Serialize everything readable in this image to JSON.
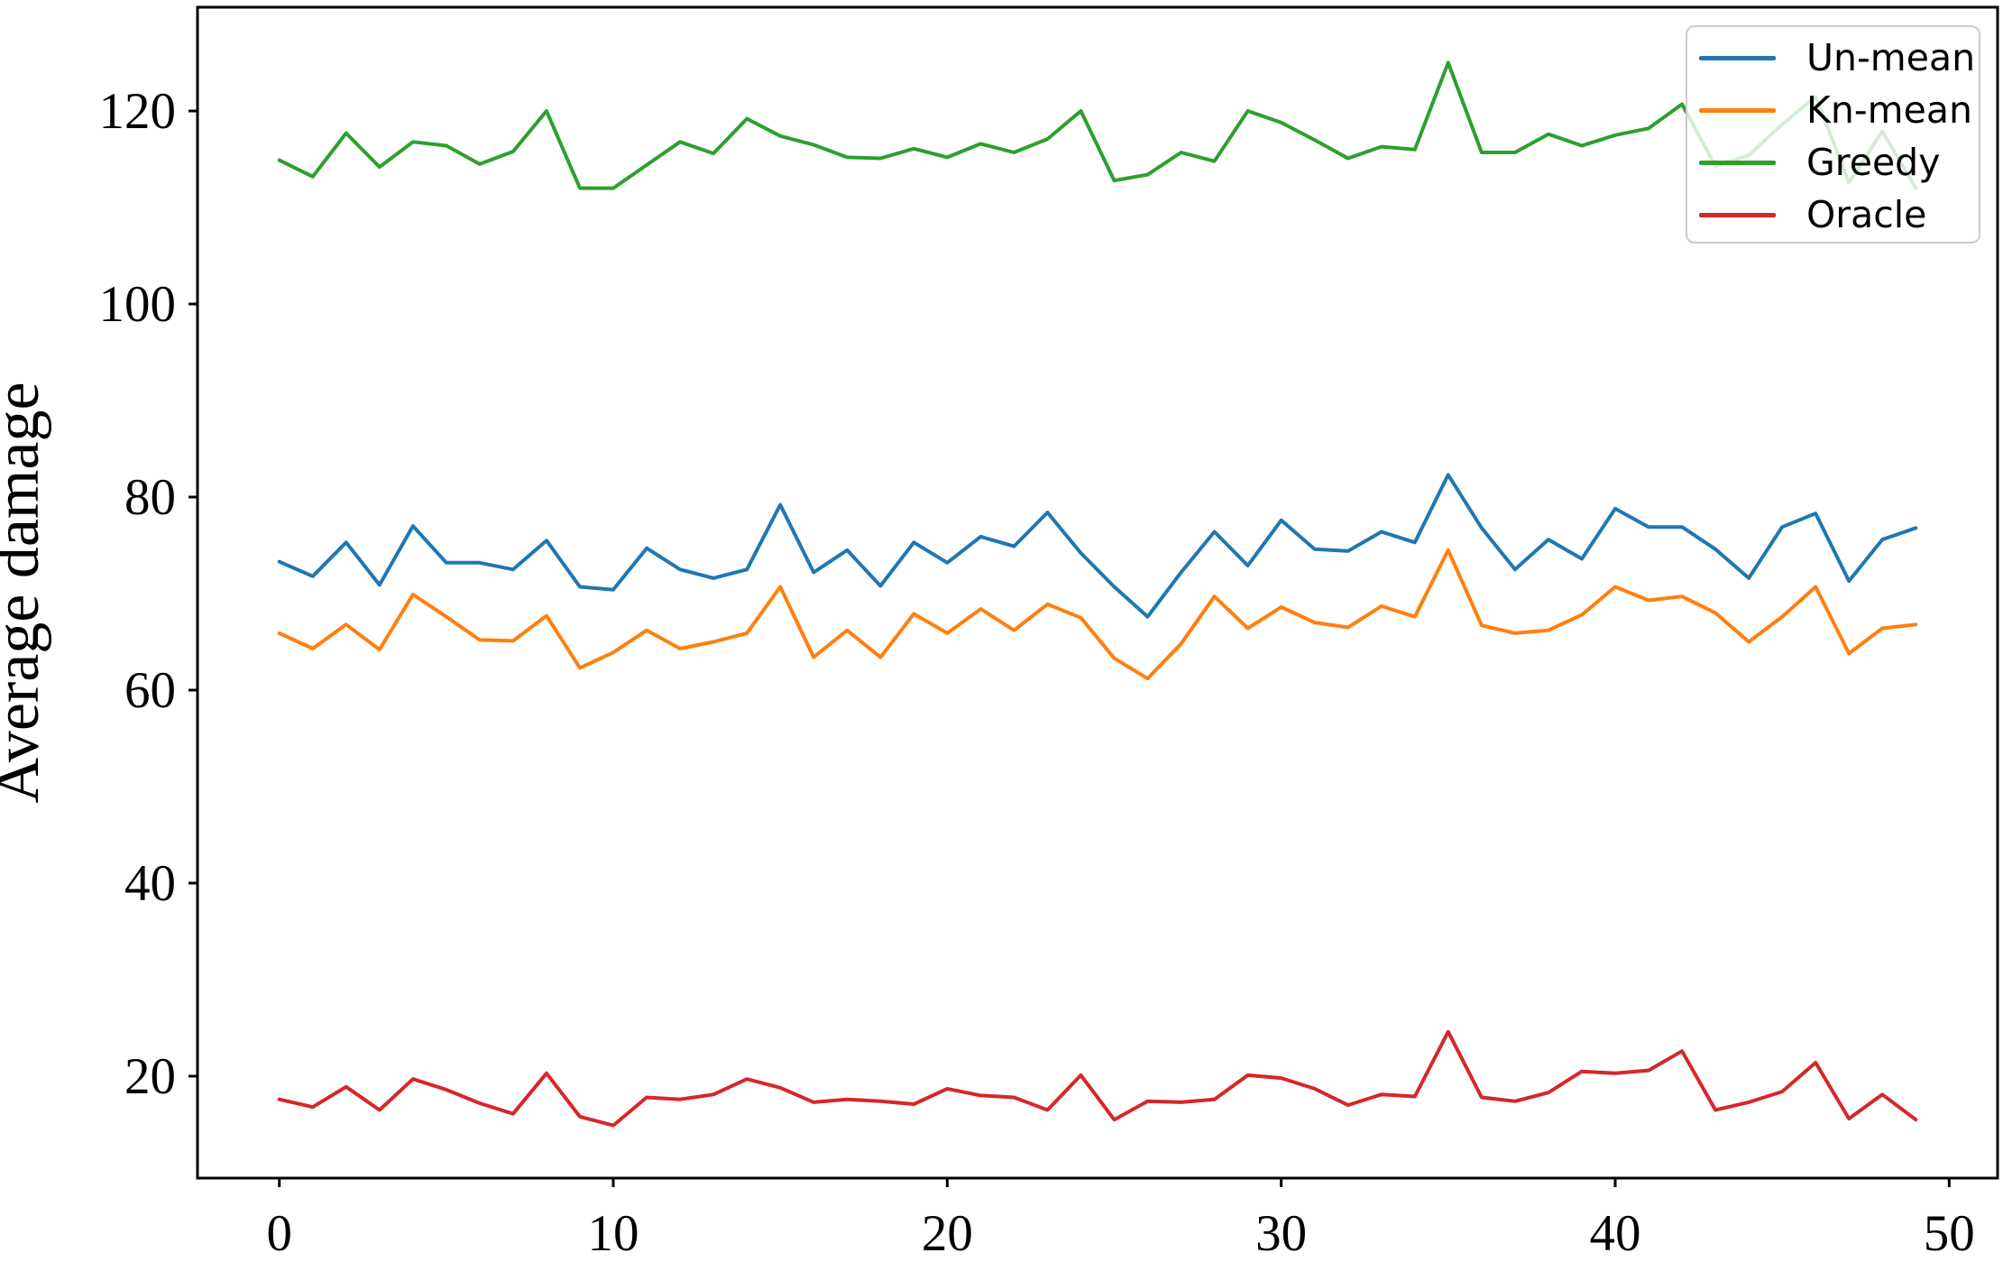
{
  "figure": {
    "background": "#ffffff"
  },
  "chart_data": {
    "type": "line",
    "title": "",
    "xlabel": "",
    "ylabel": "Average damage",
    "x": [
      0,
      1,
      2,
      3,
      4,
      5,
      6,
      7,
      8,
      9,
      10,
      11,
      12,
      13,
      14,
      15,
      16,
      17,
      18,
      19,
      20,
      21,
      22,
      23,
      24,
      25,
      26,
      27,
      28,
      29,
      30,
      31,
      32,
      33,
      34,
      35,
      36,
      37,
      38,
      39,
      40,
      41,
      42,
      43,
      44,
      45,
      46,
      47,
      48,
      49
    ],
    "series": [
      {
        "name": "Un-mean",
        "color": "#1f77b4",
        "values": [
          73.3,
          71.8,
          75.3,
          70.9,
          77.0,
          73.2,
          73.2,
          72.5,
          75.5,
          70.7,
          70.4,
          74.7,
          72.5,
          71.6,
          72.5,
          79.2,
          72.2,
          74.5,
          70.8,
          75.3,
          73.2,
          75.9,
          74.9,
          78.4,
          74.2,
          70.7,
          67.6,
          72.2,
          76.4,
          72.9,
          77.6,
          74.6,
          74.4,
          76.4,
          75.3,
          82.3,
          76.8,
          72.5,
          75.6,
          73.6,
          78.8,
          76.9,
          76.9,
          74.6,
          71.6,
          76.9,
          78.3,
          71.3,
          75.6,
          76.8
        ]
      },
      {
        "name": "Kn-mean",
        "color": "#ff7f0e",
        "values": [
          65.9,
          64.3,
          66.8,
          64.2,
          69.9,
          67.6,
          65.2,
          65.1,
          67.7,
          62.3,
          63.9,
          66.2,
          64.3,
          65.0,
          65.9,
          70.7,
          63.4,
          66.2,
          63.4,
          67.9,
          65.9,
          68.4,
          66.2,
          68.9,
          67.5,
          63.3,
          61.2,
          64.8,
          69.7,
          66.4,
          68.6,
          67.0,
          66.5,
          68.7,
          67.6,
          74.5,
          66.7,
          65.9,
          66.2,
          67.8,
          70.7,
          69.3,
          69.7,
          68.0,
          65.0,
          67.6,
          70.7,
          63.8,
          66.4,
          66.8
        ]
      },
      {
        "name": "Greedy",
        "color": "#2ca02c",
        "values": [
          114.9,
          113.2,
          117.7,
          114.2,
          116.8,
          116.4,
          114.5,
          115.8,
          120.0,
          112.0,
          112.0,
          114.4,
          116.8,
          115.6,
          119.2,
          117.4,
          116.5,
          115.2,
          115.1,
          116.1,
          115.2,
          116.6,
          115.7,
          117.1,
          120.0,
          112.8,
          113.4,
          115.7,
          114.8,
          120.0,
          118.8,
          117.0,
          115.1,
          116.3,
          116.0,
          125.0,
          115.7,
          115.7,
          117.6,
          116.4,
          117.5,
          118.2,
          120.7,
          114.3,
          115.4,
          118.6,
          121.5,
          112.6,
          117.9,
          112.0
        ]
      },
      {
        "name": "Oracle",
        "color": "#d62728",
        "values": [
          17.6,
          16.8,
          18.9,
          16.5,
          19.7,
          18.6,
          17.2,
          16.1,
          20.3,
          15.8,
          14.9,
          17.8,
          17.6,
          18.1,
          19.7,
          18.8,
          17.3,
          17.6,
          17.4,
          17.1,
          18.7,
          18.0,
          17.8,
          16.5,
          20.1,
          15.5,
          17.4,
          17.3,
          17.6,
          20.1,
          19.8,
          18.7,
          17.0,
          18.1,
          17.9,
          24.6,
          17.8,
          17.4,
          18.3,
          20.5,
          20.3,
          20.6,
          22.6,
          16.5,
          17.3,
          18.4,
          21.4,
          15.6,
          18.1,
          15.5
        ]
      }
    ],
    "xticks": [
      0,
      10,
      20,
      30,
      40,
      50
    ],
    "yticks": [
      20,
      40,
      60,
      80,
      100,
      120
    ],
    "xlim": [
      -2.45,
      51.45
    ],
    "ylim": [
      9.44,
      130.75
    ],
    "grid": false,
    "legend": {
      "position": "upper right",
      "entries": [
        "Un-mean",
        "Kn-mean",
        "Greedy",
        "Oracle"
      ]
    }
  },
  "colors": {
    "spine": "#000000",
    "tick": "#000000",
    "text": "#000000",
    "legend_border": "#cccccc",
    "legend_bg": "rgba(255,255,255,0.8)"
  }
}
